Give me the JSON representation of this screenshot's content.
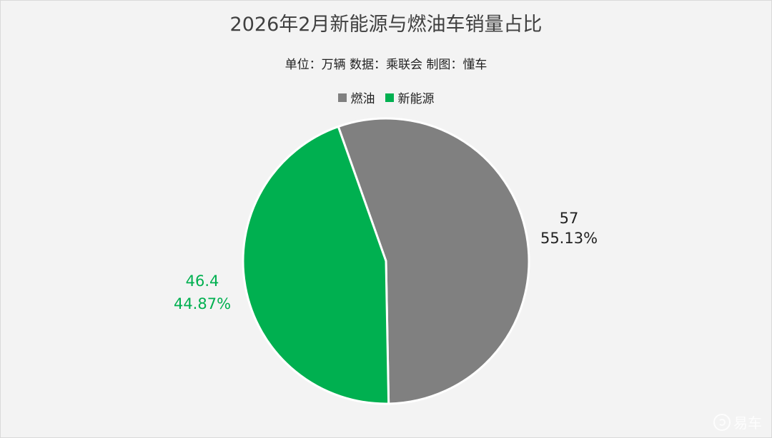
{
  "chart_data": {
    "type": "pie",
    "title": "2026年2月新能源与燃油车销量占比",
    "subtitle": "单位：万辆  数据：乘联会  制图：懂车",
    "unit": "万辆",
    "source": "乘联会",
    "legend_position": "top",
    "slices": [
      {
        "label": "燃油",
        "value": 57,
        "value_text": "57",
        "percent": 55.13,
        "percent_text": "55.13%",
        "color": "#808080"
      },
      {
        "label": "新能源",
        "value": 46.4,
        "value_text": "46.4",
        "percent": 44.87,
        "percent_text": "44.87%",
        "color": "#00b050"
      }
    ]
  },
  "watermark": {
    "text": "易车",
    "icon": "yiche-logo-icon"
  }
}
